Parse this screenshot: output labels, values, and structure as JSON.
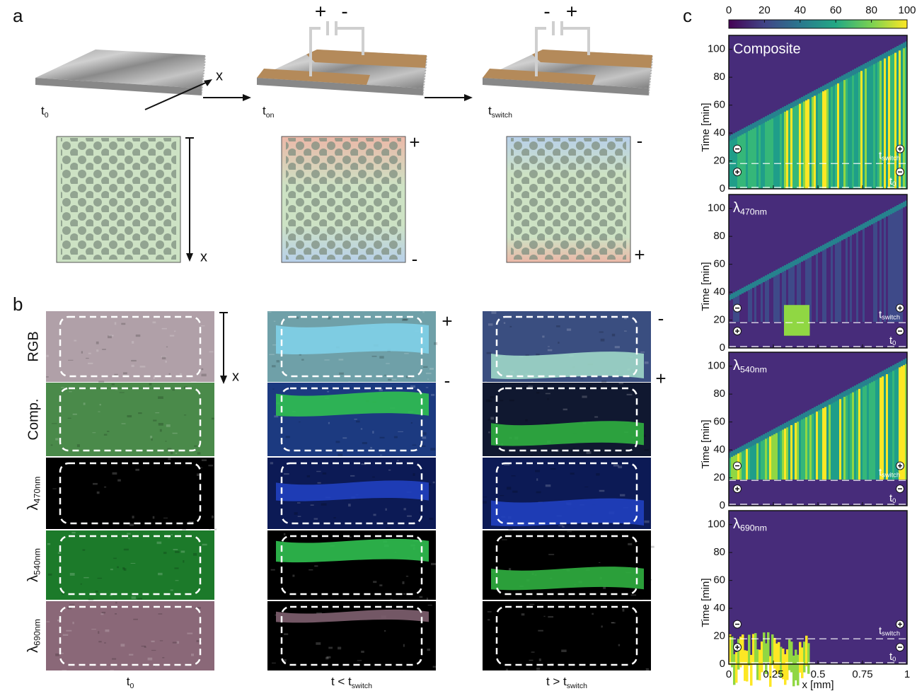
{
  "panel_labels": [
    "a",
    "b",
    "c"
  ],
  "panel_a": {
    "axis_x_3d": "x",
    "axis_x_2d": "x",
    "states": [
      {
        "base": "t",
        "sub": "0"
      },
      {
        "base": "t",
        "sub": "on"
      },
      {
        "base": "t",
        "sub": "switch"
      }
    ],
    "capacitor_2": [
      "+",
      "-"
    ],
    "capacitor_3": [
      "-",
      "+"
    ],
    "side_2": [
      "+",
      "-"
    ],
    "side_3": [
      "-",
      "+"
    ]
  },
  "panel_b": {
    "axis_x": "x",
    "rows": [
      "RGB",
      "Comp.",
      {
        "base": "λ",
        "sub": "470nm"
      },
      {
        "base": "λ",
        "sub": "540nm"
      },
      {
        "base": "λ",
        "sub": "690nm"
      }
    ],
    "columns": [
      {
        "base": "t",
        "sub": "0"
      },
      {
        "base": "t < t",
        "sub": "switch"
      },
      {
        "base": "t > t",
        "sub": "switch"
      }
    ],
    "side_2": [
      "+",
      "-"
    ],
    "side_3": [
      "-",
      "+"
    ]
  },
  "panel_c": {
    "colorbar_ticks": [
      0,
      20,
      40,
      60,
      80,
      100
    ],
    "colorbar_lim": [
      0,
      100
    ],
    "plots": [
      "Composite",
      {
        "base": "λ",
        "sub": "470nm"
      },
      {
        "base": "λ",
        "sub": "540nm"
      },
      {
        "base": "λ",
        "sub": "690nm"
      }
    ],
    "ylabel": "Time [min]",
    "ylim": [
      0,
      110
    ],
    "yticks": [
      0,
      20,
      40,
      60,
      80,
      100
    ],
    "xlim": [
      0,
      1
    ],
    "xticks": [
      0,
      0.25,
      0.5,
      0.75,
      1
    ],
    "xlabel": "x [mm]",
    "markers": [
      {
        "base": "t",
        "sub": "switch"
      },
      {
        "base": "t",
        "sub": "0"
      }
    ]
  }
}
